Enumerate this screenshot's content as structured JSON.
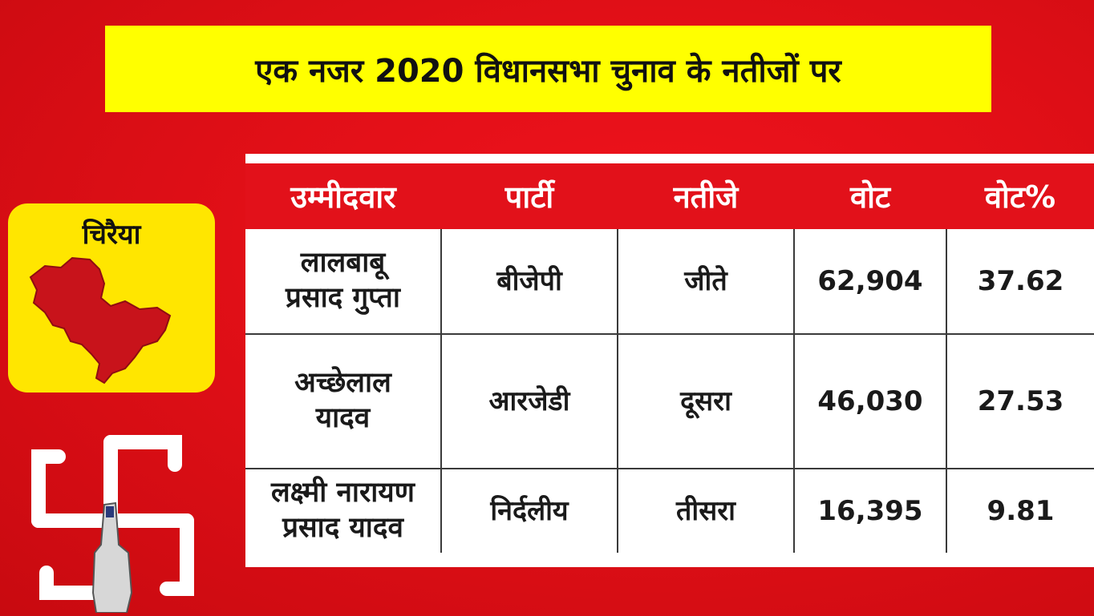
{
  "title": "एक नजर 2020 विधानसभा चुनाव के नतीजों पर",
  "constituency": "चिरैया",
  "table": {
    "headers": [
      "उम्मीदवार",
      "पार्टी",
      "नतीजे",
      "वोट",
      "वोट%"
    ],
    "rows": [
      {
        "candidate": [
          "लालबाबू",
          "प्रसाद गुप्ता"
        ],
        "party": "बीजेपी",
        "result": "जीते",
        "votes": "62,904",
        "vote_pct": "37.62"
      },
      {
        "candidate": [
          "अच्छेलाल",
          "यादव"
        ],
        "party": "आरजेडी",
        "result": "दूसरा",
        "votes": "46,030",
        "vote_pct": "27.53"
      },
      {
        "candidate": [
          "लक्ष्मी नारायण",
          "प्रसाद यादव"
        ],
        "party": "निर्दलीय",
        "result": "तीसरा",
        "votes": "16,395",
        "vote_pct": "9.81"
      }
    ]
  },
  "icons": {
    "map": "constituency-map-icon",
    "emblem": "voting-finger-swastika-icon"
  },
  "colors": {
    "background": "#e10f17",
    "title_bg": "#ffff00",
    "card_bg": "#ffe600",
    "map_fill": "#c8131b",
    "header_bg": "#e2111a"
  }
}
